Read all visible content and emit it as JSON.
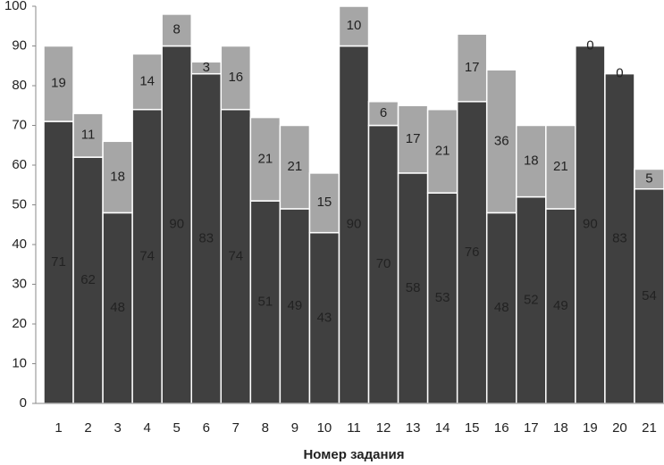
{
  "chart_data": {
    "type": "stacked_bar",
    "x_label": "Номер задания",
    "categories": [
      "1",
      "2",
      "3",
      "4",
      "5",
      "6",
      "7",
      "8",
      "9",
      "10",
      "11",
      "12",
      "13",
      "14",
      "15",
      "16",
      "17",
      "18",
      "19",
      "20",
      "21"
    ],
    "series": [
      {
        "color": "#404040",
        "values": [
          71,
          62,
          48,
          74,
          90,
          83,
          74,
          51,
          49,
          43,
          90,
          70,
          58,
          53,
          76,
          48,
          52,
          49,
          90,
          83,
          54
        ]
      },
      {
        "color": "#a6a6a6",
        "values": [
          19,
          11,
          18,
          14,
          8,
          3,
          16,
          21,
          21,
          15,
          10,
          6,
          17,
          21,
          17,
          36,
          18,
          21,
          0,
          0,
          5
        ]
      }
    ],
    "ylim": [
      0,
      100
    ],
    "yticks": [
      0,
      10,
      20,
      30,
      40,
      50,
      60,
      70,
      80,
      90,
      100
    ]
  }
}
